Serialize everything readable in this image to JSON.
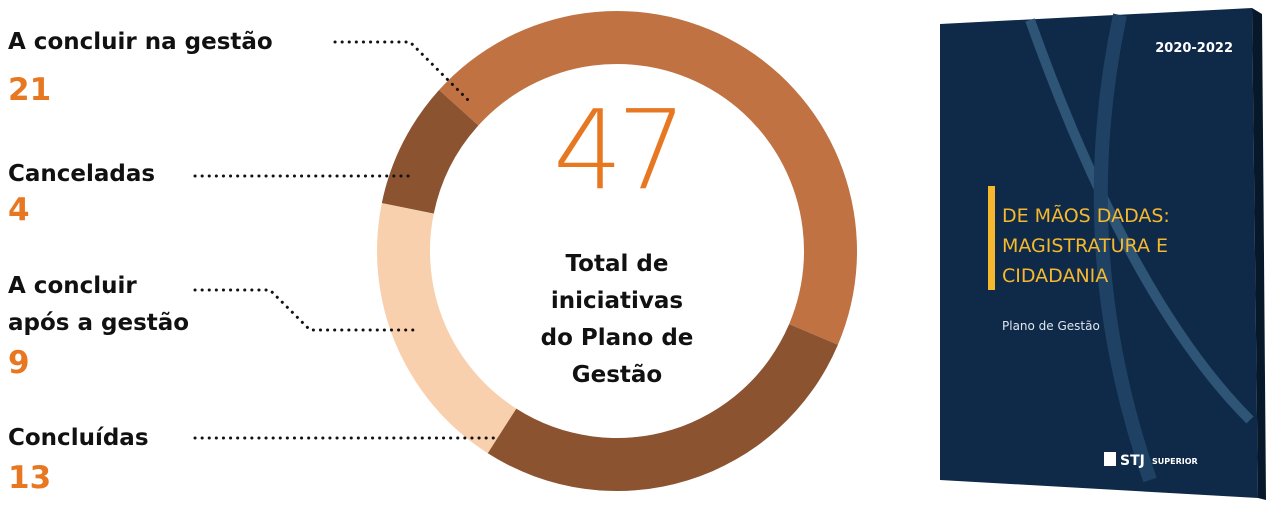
{
  "chart_data": {
    "type": "donut",
    "categories": [
      "A concluir na gestão",
      "Canceladas",
      "A concluir após a gestão",
      "Concluídas"
    ],
    "values": [
      21,
      4,
      9,
      13
    ],
    "colors": [
      "#c07242",
      "#8b5330",
      "#f9d0ae",
      "#8b5330"
    ],
    "total": 47,
    "total_label": "Total de iniciativas do Plano de Gestão"
  },
  "book": {
    "years": "2020-2022",
    "title_lines": [
      "DE MÃOS DADAS:",
      "MAGISTRATURA E",
      "CIDADANIA"
    ],
    "subtitle": "Plano de Gestão",
    "logo": "STJ",
    "logo_text": "SUPERIOR"
  }
}
